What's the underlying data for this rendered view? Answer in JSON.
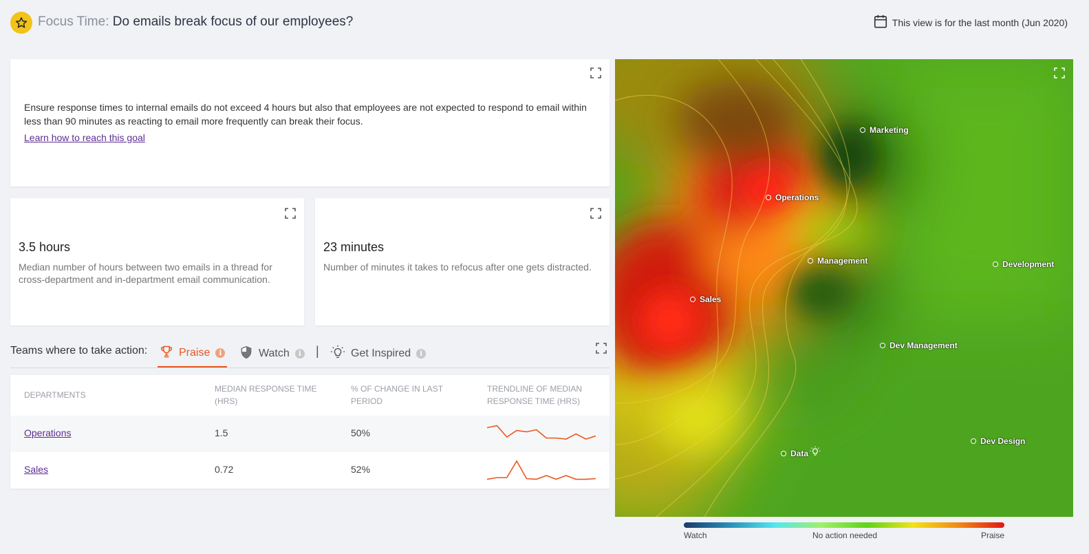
{
  "header": {
    "title_prefix": "Focus Time:",
    "title_main": "Do emails break focus of our employees?",
    "date_text": "This view is for the last month (Jun 2020)",
    "star_icon": "star-icon",
    "calendar_icon": "calendar-icon",
    "badge_color": "#f2c318"
  },
  "goal": {
    "text": "Ensure response times to internal emails do not exceed 4 hours but also that employees are not expected to respond to email within less than 90 minutes as reacting to email more frequently can break their focus.",
    "link": "Learn how to reach this goal"
  },
  "metrics": [
    {
      "value": "3.5 hours",
      "description": "Median number of hours between two emails in a thread for cross-department and in-department email communication."
    },
    {
      "value": "23 minutes",
      "description": "Number of minutes it takes to refocus after one gets distracted."
    }
  ],
  "tabs": {
    "label": "Teams where to take action:",
    "items": [
      {
        "label": "Praise",
        "icon": "trophy-icon",
        "active": true
      },
      {
        "label": "Watch",
        "icon": "shield-icon",
        "active": false
      },
      {
        "label": "Get Inspired",
        "icon": "lightbulb-icon",
        "active": false
      }
    ],
    "separator": "|",
    "info_glyph": "i",
    "accent_color": "#e8571e"
  },
  "table": {
    "headers": [
      "DEPARTMENTS",
      "MEDIAN RESPONSE TIME (HRS)",
      "% OF CHANGE IN LAST PERIOD",
      "TRENDLINE OF MEDIAN RESPONSE TIME (HRS)"
    ],
    "rows": [
      {
        "department": "Operations",
        "median": "1.5",
        "change": "50%",
        "trend": [
          0.85,
          0.95,
          0.4,
          0.72,
          0.65,
          0.75,
          0.35,
          0.35,
          0.3,
          0.55,
          0.3,
          0.45
        ]
      },
      {
        "department": "Sales",
        "median": "0.72",
        "change": "52%",
        "trend": [
          0.12,
          0.2,
          0.2,
          1.0,
          0.15,
          0.12,
          0.3,
          0.12,
          0.3,
          0.12,
          0.12,
          0.15
        ]
      }
    ]
  },
  "map": {
    "pins": [
      "Marketing",
      "Operations",
      "Management",
      "Development",
      "Sales",
      "Dev Management",
      "Dev Design",
      "Data"
    ],
    "data_marker_icon": "lightbulb-icon",
    "expand_icon": "expand-icon"
  },
  "legend": {
    "watch": "Watch",
    "neutral": "No action needed",
    "praise": "Praise"
  }
}
